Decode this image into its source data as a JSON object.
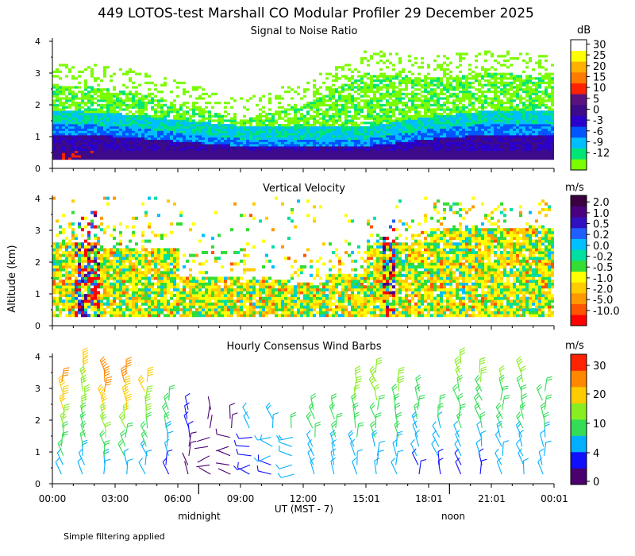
{
  "figure": {
    "title": "449 LOTOS-test Marshall CO Modular Profiler 29 December 2025",
    "ylabel": "Altitude (km)",
    "xlabel": "UT  (MST - 7)",
    "xticks": [
      "00:00",
      "03:00",
      "06:00",
      "09:00",
      "12:00",
      "15:01",
      "18:01",
      "21:01",
      "00:01"
    ],
    "xtick_hours": [
      0,
      3,
      6,
      9,
      12,
      15.017,
      18.017,
      21.017,
      24.017
    ],
    "midnight_label": "midnight",
    "noon_label": "noon",
    "local_markers_ut_hours": [
      7,
      19
    ],
    "footer": "Simple filtering applied"
  },
  "colors": {
    "snr_scale": [
      "#7cfc00",
      "#00e676",
      "#00bfff",
      "#0055ff",
      "#2a00cc",
      "#3d0a8a",
      "#5a1280",
      "#ff2200",
      "#ff7a00",
      "#ffb000",
      "#ffff00",
      "#ffffff"
    ],
    "vv_scale": [
      "#3a0040",
      "#4b0082",
      "#3010c0",
      "#1f5fff",
      "#00c0ff",
      "#00e0a0",
      "#33dd33",
      "#ffff00",
      "#ffcc00",
      "#ff9900",
      "#ff5500",
      "#ff0000"
    ],
    "wind_scale": [
      "#4b0070",
      "#1010ff",
      "#00b0ff",
      "#33dd55",
      "#88ee22",
      "#ffcc00",
      "#ff8800",
      "#ff2200"
    ]
  },
  "chart_data": [
    {
      "type": "heatmap",
      "title": "Signal to Noise Ratio",
      "units": "dB",
      "xlabel": "UT (MST - 7)",
      "ylabel": "Altitude (km)",
      "xlim": [
        0,
        24
      ],
      "ylim": [
        0,
        4
      ],
      "yticks": [
        "0",
        "1",
        "2",
        "3",
        "4"
      ],
      "colorbar_ticks": [
        "30",
        "25",
        "20",
        "15",
        "10",
        "5",
        "0",
        "-3",
        "-6",
        "-9",
        "-12"
      ],
      "colorbar_values": [
        30,
        25,
        20,
        15,
        10,
        5,
        0,
        -3,
        -6,
        -9,
        -12
      ],
      "approx_layers_km": {
        "hours": [
          0,
          3,
          6,
          9,
          12,
          15,
          18,
          21,
          24
        ],
        "top_of_strong_echo": [
          1.4,
          1.3,
          1.1,
          0.9,
          0.9,
          0.9,
          1.2,
          1.4,
          1.4
        ],
        "top_of_detection": [
          2.6,
          2.5,
          2.0,
          1.5,
          2.0,
          3.0,
          2.8,
          3.0,
          2.8
        ]
      }
    },
    {
      "type": "heatmap",
      "title": "Vertical Velocity",
      "units": "m/s",
      "xlabel": "UT (MST - 7)",
      "ylabel": "Altitude (km)",
      "xlim": [
        0,
        24
      ],
      "ylim": [
        0,
        4
      ],
      "yticks": [
        "0",
        "1",
        "2",
        "3",
        "4"
      ],
      "colorbar_ticks": [
        "2.0",
        "1.0",
        "0.5",
        "0.2",
        "0.0",
        "-0.2",
        "-0.5",
        "-1.0",
        "-2.0",
        "-5.0",
        "-10.0"
      ],
      "colorbar_values": [
        2.0,
        1.0,
        0.5,
        0.2,
        0.0,
        -0.2,
        -0.5,
        -1.0,
        -2.0,
        -5.0,
        -10.0
      ]
    },
    {
      "type": "scatter",
      "title": "Hourly Consensus Wind Barbs",
      "units": "m/s",
      "xlabel": "UT (MST - 7)",
      "ylabel": "Altitude (km)",
      "xlim": [
        0,
        24
      ],
      "ylim": [
        0,
        4
      ],
      "yticks": [
        "0",
        "1",
        "2",
        "3",
        "4"
      ],
      "colorbar_ticks": [
        "30",
        "20",
        "10",
        "4",
        "0"
      ],
      "colorbar_values": [
        30,
        20,
        10,
        4,
        0
      ],
      "hours": [
        0.5,
        1.5,
        2.5,
        3.5,
        4.5,
        5.5,
        6.5,
        7.5,
        8.5,
        9.5,
        10.5,
        11.5,
        12.5,
        13.5,
        14.5,
        15.5,
        16.5,
        17.5,
        18.5,
        19.5,
        20.5,
        21.5,
        22.5,
        23.5
      ],
      "max_height_km": [
        3.4,
        3.8,
        3.6,
        3.5,
        3.3,
        2.7,
        2.6,
        2.4,
        2.2,
        2.2,
        2.1,
        2.0,
        2.4,
        2.6,
        3.2,
        3.5,
        3.4,
        3.0,
        2.4,
        3.8,
        3.7,
        3.4,
        3.5,
        3.1
      ],
      "low_level_speed_ms": [
        6,
        6,
        6,
        6,
        5,
        4,
        2,
        2,
        2,
        3,
        4,
        5,
        5,
        5,
        5,
        5,
        5,
        4,
        4,
        4,
        4,
        5,
        5,
        5
      ],
      "upper_level_speed_ms": [
        22,
        18,
        24,
        22,
        19,
        12,
        4,
        2,
        3,
        6,
        8,
        9,
        11,
        12,
        14,
        15,
        14,
        11,
        9,
        14,
        14,
        13,
        13,
        12
      ]
    }
  ]
}
